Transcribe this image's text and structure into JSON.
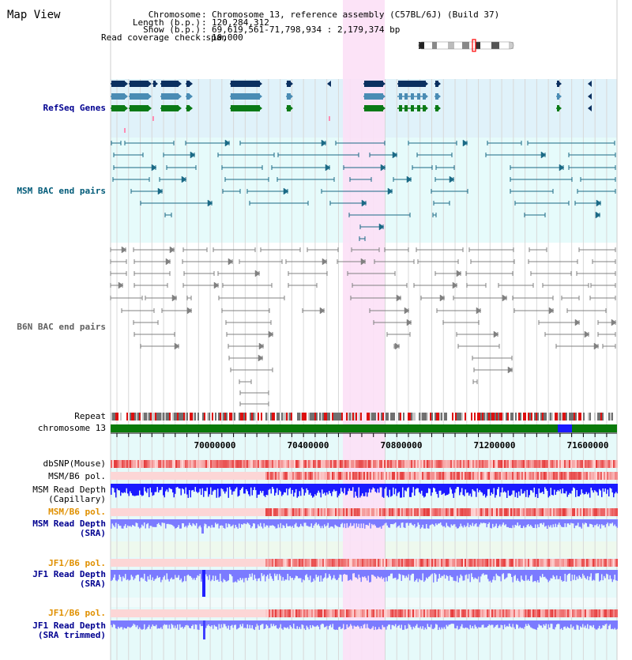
{
  "title": "Map View",
  "info": [
    {
      "label": "Chromosome",
      "value": "Chromosome 13, reference assembly (C57BL/6J) (Build 37)"
    },
    {
      "label": "Length (b.p.)",
      "value": "120,284,312"
    },
    {
      "label": "Show (b.p.)",
      "value": "69,619,561-71,798,934 : 2,179,374 bp"
    },
    {
      "label": "Read coverage check span",
      "value": "10,000"
    }
  ],
  "info_sep": ":",
  "tracks": {
    "refseq": "RefSeq Genes",
    "msm_bac": "MSM BAC end pairs",
    "b6n_bac": "B6N BAC end pairs",
    "repeat": "Repeat",
    "chromosome": "chromosome 13",
    "dbsnp": "dbSNP(Mouse)",
    "msm_pol1": "MSM/B6 pol.",
    "msm_depth_cap": "MSM Read Depth\n(Capillary)",
    "msm_pol2": "MSM/B6 pol.",
    "msm_depth_sra": "MSM Read Depth\n(SRA)",
    "jf1_pol1": "JF1/B6 pol.",
    "jf1_depth_sra": "JF1 Read Depth\n(SRA)",
    "jf1_pol2": "JF1/B6 pol.",
    "jf1_depth_trim": "JF1 Read Depth\n(SRA trimmed)"
  },
  "axis_ticks": [
    "70000000",
    "70400000",
    "70800000",
    "71200000",
    "71600000"
  ],
  "colors": {
    "refseq_bg": "#e0f2fa",
    "msm_bg": "#e6fbfb",
    "lower_bg": "#e6fafa",
    "highlight": "#fce0f6",
    "gene_navy": "#0b3060",
    "gene_steel": "#4a8cb4",
    "gene_green": "#0a7a16",
    "msm_line": "#1b6a86",
    "b6n_line": "#808080",
    "chromosome_bar": "#0a7a0a",
    "chromosome_mark": "#1a1aff",
    "snp_red": "#f03030",
    "depth_blue": "#1a1aff",
    "depth_light": "#7b7bff",
    "orange_label": "#e09000",
    "navy_label": "#000090",
    "msm_label": "#005a78",
    "b6n_label": "#606060"
  }
}
